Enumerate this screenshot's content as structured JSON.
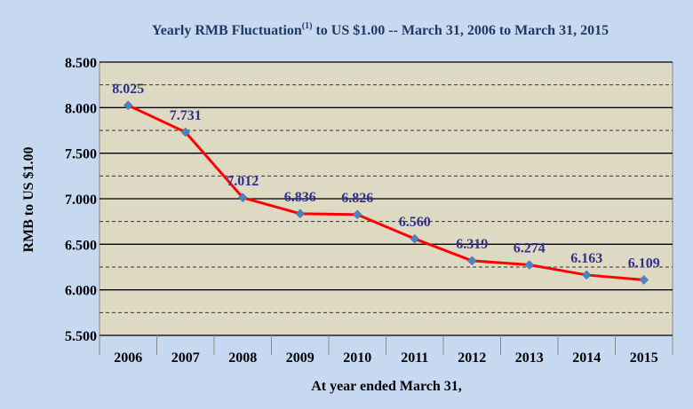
{
  "chart_data": {
    "type": "line",
    "title_main": "Yearly  RMB Fluctuation",
    "title_sup": "(1)",
    "title_rest": "  to US $1.00  -- March  31, 2006 to March  31, 2015",
    "xlabel": "At year ended March 31,",
    "ylabel": "RMB to US $1.00",
    "categories": [
      "2006",
      "2007",
      "2008",
      "2009",
      "2010",
      "2011",
      "2012",
      "2013",
      "2014",
      "2015"
    ],
    "values": [
      8.025,
      7.731,
      7.012,
      6.836,
      6.826,
      6.56,
      6.319,
      6.274,
      6.163,
      6.109
    ],
    "data_labels": [
      "8.025",
      "7.731",
      "7.012",
      "6.836",
      "6.826",
      "6.560",
      "6.319",
      "6.274",
      "6.163",
      "6.109"
    ],
    "ylim": [
      5.5,
      8.5
    ],
    "yticks": [
      5.5,
      6.0,
      6.5,
      7.0,
      7.5,
      8.0,
      8.5
    ],
    "ytick_labels": [
      "5.500",
      "6.000",
      "6.500",
      "7.000",
      "7.500",
      "8.000",
      "8.500"
    ],
    "minor_gridlines": [
      5.75,
      6.25,
      6.75,
      7.25,
      7.75,
      8.25
    ],
    "grid": true,
    "colors": {
      "background": "#c6d9f1",
      "plot_area": "#ddd9c3",
      "line": "#ff0000",
      "marker": "#4f81bd",
      "data_label": "#2f2f8f",
      "title": "#1f3864"
    }
  }
}
